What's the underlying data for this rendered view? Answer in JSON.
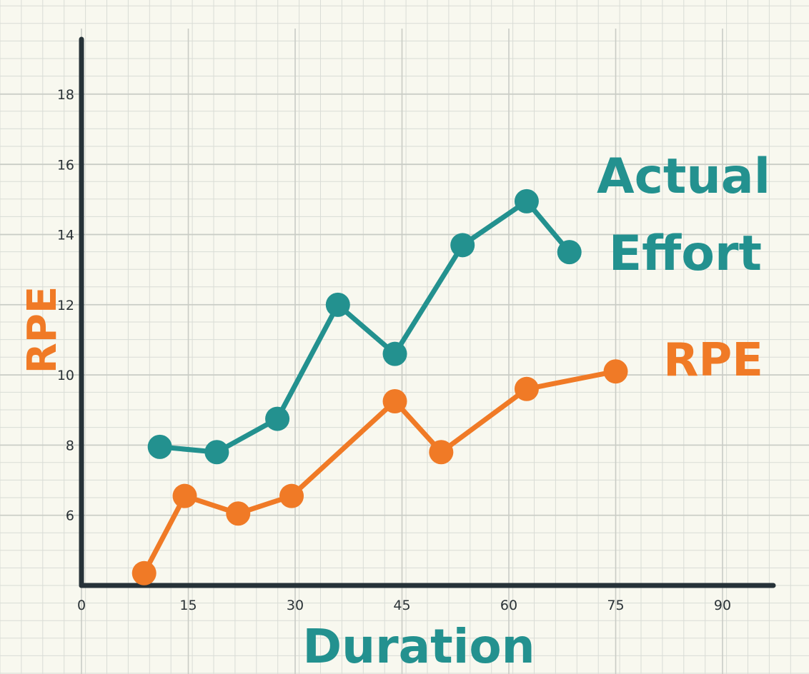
{
  "chart_data": {
    "type": "line",
    "title": "",
    "xlabel": "Duration",
    "ylabel": "RPE",
    "xlim": [
      0,
      96
    ],
    "ylim": [
      4,
      20
    ],
    "x_ticks": [
      "0",
      "15",
      "30",
      "45",
      "60",
      "75",
      "90"
    ],
    "y_ticks": [
      "6",
      "8",
      "10",
      "12",
      "14",
      "16",
      "18"
    ],
    "grid": true,
    "legend_position": "right",
    "series": [
      {
        "name": "Actual Effort",
        "color": "#23918f",
        "x": [
          11,
          19,
          27.5,
          36,
          44,
          53.5,
          62.5,
          68.5
        ],
        "y": [
          7.95,
          7.8,
          8.75,
          12.0,
          10.6,
          13.7,
          14.95,
          13.5
        ]
      },
      {
        "name": "RPE",
        "color": "#f07a26",
        "x": [
          8.8,
          14.5,
          22,
          29.5,
          44,
          50.5,
          62.5,
          75
        ],
        "y": [
          4.35,
          6.55,
          6.05,
          6.55,
          9.25,
          7.8,
          9.6,
          10.1
        ]
      }
    ]
  },
  "legend": {
    "actual_line1": "Actual",
    "actual_line2": "Effort",
    "rpe": "RPE"
  },
  "colors": {
    "background": "#f8f8ef",
    "axis": "#263238",
    "grid": "#d9dcd6"
  }
}
